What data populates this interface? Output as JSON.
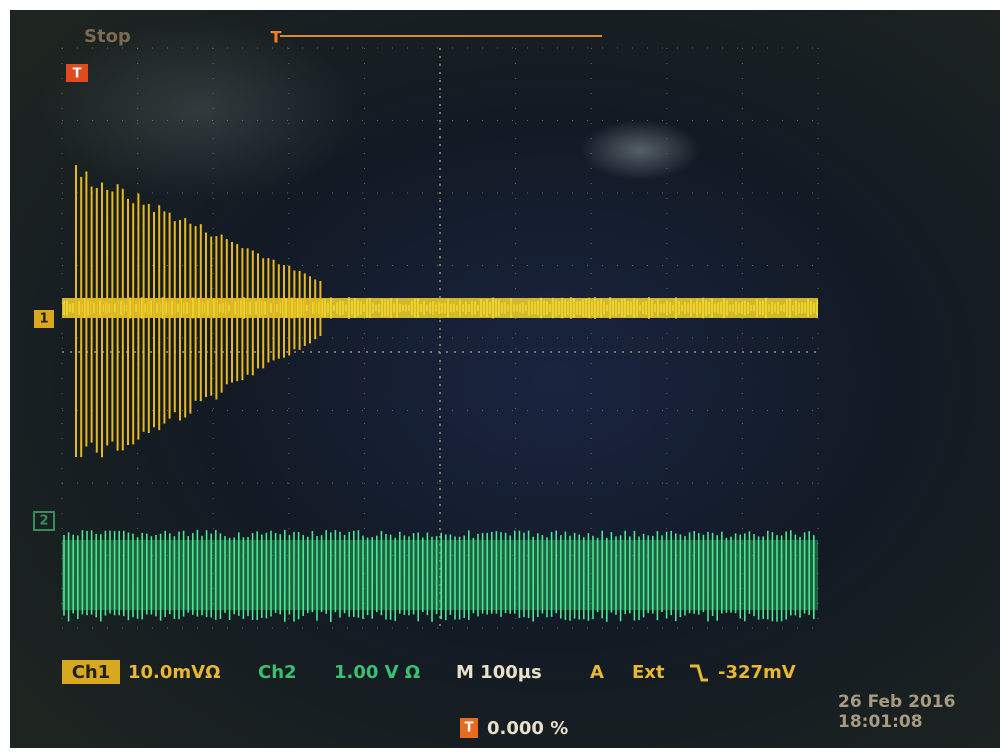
{
  "header": {
    "status": "Stop"
  },
  "markers": {
    "trigger": "T",
    "ch1": "1",
    "ch2": "2"
  },
  "status_bar": {
    "ch1_label": "Ch1",
    "ch1_scale": "10.0mVΩ",
    "ch2_label": "Ch2",
    "ch2_scale": "1.00 V Ω",
    "timebase": "M 100µs",
    "acquire": "A",
    "trigger_source": "Ext",
    "trigger_level": "-327mV"
  },
  "footer": {
    "trigger_position": "0.000 %",
    "date": "26 Feb 2016",
    "time": "18:01:08"
  }
}
